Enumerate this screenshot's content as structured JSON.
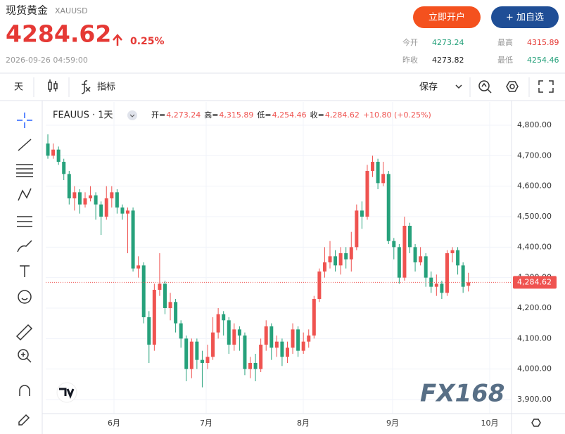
{
  "header": {
    "name": "现货黄金",
    "symbol": "XAUUSD",
    "price": 4284.62,
    "change_pct": "0.25%",
    "time": "2026-09-26 04:59:00",
    "open_account": "立即开户",
    "add_watch": "+ 加自选",
    "stats": [
      {
        "label": "今开",
        "value": 4273.24
      },
      {
        "label": "最高",
        "value": 4315.89
      },
      {
        "label": "昨收",
        "value": 4273.82
      },
      {
        "label": "最低",
        "value": 4254.46
      }
    ]
  },
  "toolbar": {
    "interval": "天",
    "indicators": "指标",
    "save": "保存"
  },
  "watermark": "FX168",
  "chart_data": {
    "type": "candlestick",
    "legend": {
      "symbol": "FEAUUS · 1天",
      "items": [
        {
          "label": "开=",
          "value": "4,273.24"
        },
        {
          "label": "高=",
          "value": "4,315.89"
        },
        {
          "label": "低=",
          "value": "4,254.46"
        },
        {
          "label": "收=",
          "value": "4,284.62"
        }
      ],
      "change": "+10.80 (+0.25%)"
    },
    "up_color": "#ef5350",
    "down_color": "#26a17b",
    "grid": true,
    "x": [
      0,
      1,
      2,
      3,
      4,
      5,
      6,
      7,
      8,
      9,
      10,
      11,
      12,
      13,
      14,
      15,
      16,
      17,
      18,
      19,
      20,
      21,
      22,
      23,
      24,
      25,
      26,
      27,
      28,
      29,
      30,
      31,
      32,
      33,
      34,
      35,
      36,
      37,
      38,
      39,
      40,
      41,
      42,
      43,
      44,
      45,
      46,
      47,
      48,
      49,
      50,
      51,
      52,
      53,
      54,
      55,
      56,
      57,
      58,
      59,
      60,
      61,
      62,
      63,
      64,
      65,
      66,
      67,
      68,
      69,
      70,
      71,
      72,
      73,
      74,
      75,
      76,
      77,
      78,
      79
    ],
    "open": [
      4740,
      4700,
      4720,
      4680,
      4640,
      4560,
      4580,
      4540,
      4560,
      4570,
      4540,
      4500,
      4560,
      4580,
      4530,
      4510,
      4520,
      4330,
      4340,
      4170,
      4080,
      4260,
      4280,
      4200,
      4220,
      4150,
      4100,
      4000,
      4090,
      4030,
      4020,
      4040,
      4120,
      4180,
      4160,
      4080,
      4130,
      4110,
      4000,
      4020,
      4000,
      4080,
      4140,
      4070,
      4090,
      4040,
      4070,
      4130,
      4060,
      4090,
      4110,
      4230,
      4320,
      4350,
      4370,
      4340,
      4380,
      4360,
      4400,
      4520,
      4500,
      4650,
      4680,
      4610,
      4640,
      4420,
      4400,
      4300,
      4470,
      4400,
      4350,
      4370,
      4300,
      4270,
      4280,
      4250,
      4380,
      4390,
      4340,
      4273.24
    ],
    "high": [
      4770,
      4740,
      4730,
      4690,
      4650,
      4600,
      4590,
      4580,
      4600,
      4580,
      4550,
      4600,
      4600,
      4590,
      4540,
      4530,
      4530,
      4370,
      4350,
      4190,
      4280,
      4380,
      4290,
      4250,
      4230,
      4160,
      4110,
      4100,
      4100,
      4060,
      4080,
      4170,
      4200,
      4190,
      4170,
      4150,
      4140,
      4120,
      4040,
      4050,
      4100,
      4160,
      4150,
      4110,
      4100,
      4090,
      4150,
      4140,
      4120,
      4130,
      4240,
      4330,
      4400,
      4420,
      4390,
      4400,
      4400,
      4450,
      4540,
      4550,
      4670,
      4700,
      4690,
      4680,
      4650,
      4430,
      4410,
      4500,
      4480,
      4410,
      4400,
      4380,
      4320,
      4310,
      4290,
      4390,
      4400,
      4400,
      4350,
      4315.89
    ],
    "low": [
      4690,
      4690,
      4670,
      4620,
      4540,
      4520,
      4510,
      4530,
      4550,
      4490,
      4440,
      4490,
      4530,
      4510,
      4490,
      4380,
      4320,
      4300,
      4150,
      4020,
      4060,
      4240,
      4180,
      4160,
      4120,
      4070,
      3960,
      3970,
      4000,
      3940,
      4000,
      4030,
      4100,
      4110,
      4050,
      4060,
      4060,
      3980,
      3970,
      3960,
      3990,
      4060,
      4030,
      4040,
      4010,
      4020,
      4050,
      4040,
      4050,
      4070,
      4100,
      4220,
      4300,
      4330,
      4320,
      4310,
      4330,
      4320,
      4390,
      4460,
      4490,
      4630,
      4590,
      4600,
      4410,
      4360,
      4280,
      4290,
      4380,
      4320,
      4340,
      4270,
      4250,
      4240,
      4230,
      4240,
      4350,
      4310,
      4250,
      4254.46
    ],
    "close": [
      4700,
      4720,
      4680,
      4640,
      4560,
      4580,
      4540,
      4560,
      4570,
      4540,
      4500,
      4560,
      4580,
      4530,
      4510,
      4520,
      4330,
      4340,
      4170,
      4080,
      4260,
      4280,
      4200,
      4220,
      4150,
      4100,
      4000,
      4090,
      4030,
      4020,
      4040,
      4120,
      4180,
      4160,
      4080,
      4130,
      4110,
      4000,
      4020,
      4000,
      4080,
      4140,
      4070,
      4090,
      4040,
      4070,
      4130,
      4060,
      4090,
      4110,
      4230,
      4320,
      4350,
      4370,
      4340,
      4380,
      4360,
      4400,
      4520,
      4500,
      4650,
      4680,
      4610,
      4640,
      4420,
      4400,
      4300,
      4470,
      4400,
      4350,
      4370,
      4300,
      4270,
      4280,
      4250,
      4380,
      4390,
      4340,
      4270,
      4284.62
    ],
    "last_price": {
      "value": 4284.62,
      "label": "4,284.62"
    },
    "xlim": [
      -0.4,
      87.1
    ],
    "xticks": [
      {
        "value": 12.42,
        "label": "6月"
      },
      {
        "value": 29.74,
        "label": "7月"
      },
      {
        "value": 47.98,
        "label": "8月"
      },
      {
        "value": 64.76,
        "label": "9月"
      },
      {
        "value": 83.0,
        "label": "10月"
      }
    ],
    "ylim": [
      3853.8,
      4876.2
    ],
    "yticks": [
      {
        "value": 3900,
        "label": "3,900.00"
      },
      {
        "value": 4000,
        "label": "4,000.00"
      },
      {
        "value": 4100,
        "label": "4,100.00"
      },
      {
        "value": 4200,
        "label": "4,200.00"
      },
      {
        "value": 4300,
        "label": "4,300.00"
      },
      {
        "value": 4400,
        "label": "4,400.00"
      },
      {
        "value": 4500,
        "label": "4,500.00"
      },
      {
        "value": 4600,
        "label": "4,600.00"
      },
      {
        "value": 4700,
        "label": "4,700.00"
      },
      {
        "value": 4800,
        "label": "4,800.00"
      }
    ]
  }
}
